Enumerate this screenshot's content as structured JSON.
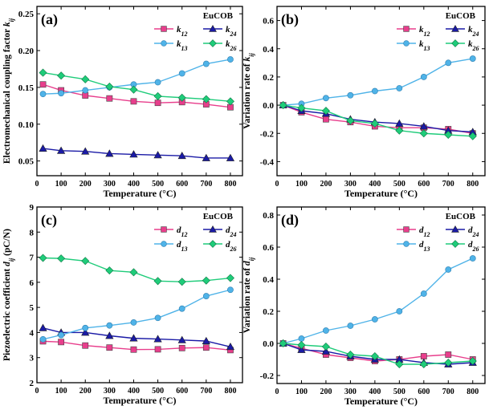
{
  "figure": {
    "colors": {
      "k12": "#e83e8c",
      "k24": "#1a1aa6",
      "k13": "#4fb3e8",
      "k26": "#1fcc7a"
    }
  },
  "chart_data": [
    {
      "type": "line",
      "panel_label": "(a)",
      "material": "EuCOB",
      "xlabel": "Temperature (°C)",
      "ylabel_parts": [
        "Electromechanical coupling factor ",
        "k",
        "ij"
      ],
      "xlim": [
        0,
        850
      ],
      "ylim": [
        0.03,
        0.26
      ],
      "xticks": [
        0,
        100,
        200,
        300,
        400,
        500,
        600,
        700,
        800
      ],
      "yticks": [
        0.05,
        0.1,
        0.15,
        0.2,
        0.25
      ],
      "ytick_labels": [
        "0.05",
        "0.10",
        "0.15",
        "0.20",
        "0.25"
      ],
      "x": [
        25,
        100,
        200,
        300,
        400,
        500,
        600,
        700,
        800
      ],
      "series": [
        {
          "key": "k12",
          "name": "k",
          "sub": "12",
          "marker": "square",
          "values": [
            0.154,
            0.146,
            0.139,
            0.135,
            0.131,
            0.129,
            0.13,
            0.127,
            0.123
          ]
        },
        {
          "key": "k24",
          "name": "k",
          "sub": "24",
          "marker": "triangle",
          "values": [
            0.067,
            0.064,
            0.063,
            0.06,
            0.059,
            0.058,
            0.057,
            0.054,
            0.054
          ]
        },
        {
          "key": "k13",
          "name": "k",
          "sub": "13",
          "marker": "circle",
          "values": [
            0.141,
            0.142,
            0.146,
            0.15,
            0.154,
            0.157,
            0.169,
            0.182,
            0.188
          ]
        },
        {
          "key": "k26",
          "name": "k",
          "sub": "26",
          "marker": "diamond",
          "values": [
            0.17,
            0.166,
            0.161,
            0.151,
            0.147,
            0.138,
            0.136,
            0.134,
            0.131
          ]
        }
      ]
    },
    {
      "type": "line",
      "panel_label": "(b)",
      "material": "EuCOB",
      "xlabel": "Temperature (°C)",
      "ylabel_parts": [
        "Variation rate of ",
        "k",
        "ij"
      ],
      "xlim": [
        0,
        850
      ],
      "ylim": [
        -0.5,
        0.7
      ],
      "xticks": [
        0,
        100,
        200,
        300,
        400,
        500,
        600,
        700,
        800
      ],
      "yticks": [
        -0.4,
        -0.2,
        0.0,
        0.2,
        0.4,
        0.6
      ],
      "ytick_labels": [
        "-0.4",
        "-0.2",
        "0.0",
        "0.2",
        "0.4",
        "0.6"
      ],
      "x": [
        25,
        100,
        200,
        300,
        400,
        500,
        600,
        700,
        800
      ],
      "series": [
        {
          "key": "k12",
          "name": "k",
          "sub": "12",
          "marker": "square",
          "values": [
            0.0,
            -0.05,
            -0.1,
            -0.12,
            -0.15,
            -0.16,
            -0.16,
            -0.17,
            -0.2
          ]
        },
        {
          "key": "k24",
          "name": "k",
          "sub": "24",
          "marker": "triangle",
          "values": [
            0.0,
            -0.04,
            -0.06,
            -0.1,
            -0.12,
            -0.13,
            -0.15,
            -0.18,
            -0.19
          ]
        },
        {
          "key": "k13",
          "name": "k",
          "sub": "13",
          "marker": "circle",
          "values": [
            0.0,
            0.01,
            0.05,
            0.07,
            0.1,
            0.12,
            0.2,
            0.3,
            0.33
          ]
        },
        {
          "key": "k26",
          "name": "k",
          "sub": "26",
          "marker": "diamond",
          "values": [
            0.0,
            -0.02,
            -0.04,
            -0.11,
            -0.13,
            -0.18,
            -0.2,
            -0.21,
            -0.22
          ]
        }
      ]
    },
    {
      "type": "line",
      "panel_label": "(c)",
      "material": "EuCOB",
      "xlabel": "Temperature (°C)",
      "ylabel_parts": [
        "Piezoelectric coefficient ",
        "d",
        "ij",
        " (pC/N)"
      ],
      "xlim": [
        0,
        850
      ],
      "ylim": [
        2,
        9
      ],
      "xticks": [
        0,
        100,
        200,
        300,
        400,
        500,
        600,
        700,
        800
      ],
      "yticks": [
        2,
        3,
        4,
        5,
        6,
        7,
        8,
        9
      ],
      "ytick_labels": [
        "2",
        "3",
        "4",
        "5",
        "6",
        "7",
        "8",
        "9"
      ],
      "x": [
        25,
        100,
        200,
        300,
        400,
        500,
        600,
        700,
        800
      ],
      "series": [
        {
          "key": "k12",
          "name": "d",
          "sub": "12",
          "marker": "square",
          "values": [
            3.65,
            3.62,
            3.48,
            3.4,
            3.32,
            3.33,
            3.38,
            3.4,
            3.3
          ]
        },
        {
          "key": "k24",
          "name": "d",
          "sub": "24",
          "marker": "triangle",
          "values": [
            4.18,
            4.0,
            4.0,
            3.87,
            3.77,
            3.74,
            3.7,
            3.66,
            3.43
          ]
        },
        {
          "key": "k13",
          "name": "d",
          "sub": "13",
          "marker": "circle",
          "values": [
            3.73,
            3.9,
            4.18,
            4.28,
            4.4,
            4.58,
            4.95,
            5.45,
            5.7
          ]
        },
        {
          "key": "k26",
          "name": "d",
          "sub": "26",
          "marker": "diamond",
          "values": [
            6.97,
            6.95,
            6.85,
            6.47,
            6.4,
            6.05,
            6.02,
            6.07,
            6.17
          ]
        }
      ]
    },
    {
      "type": "line",
      "panel_label": "(d)",
      "material": "EuCOB",
      "xlabel": "Temperature (°C)",
      "ylabel_parts": [
        "Variation rate of ",
        "d",
        "ij"
      ],
      "xlim": [
        0,
        850
      ],
      "ylim": [
        -0.25,
        0.85
      ],
      "xticks": [
        0,
        100,
        200,
        300,
        400,
        500,
        600,
        700,
        800
      ],
      "yticks": [
        -0.2,
        0.0,
        0.2,
        0.4,
        0.6,
        0.8
      ],
      "ytick_labels": [
        "-0.2",
        "0.0",
        "0.2",
        "0.4",
        "0.6",
        "0.8"
      ],
      "x": [
        25,
        100,
        200,
        300,
        400,
        500,
        600,
        700,
        800
      ],
      "series": [
        {
          "key": "k12",
          "name": "d",
          "sub": "12",
          "marker": "square",
          "values": [
            0.0,
            -0.03,
            -0.07,
            -0.09,
            -0.11,
            -0.1,
            -0.08,
            -0.07,
            -0.1
          ]
        },
        {
          "key": "k24",
          "name": "d",
          "sub": "24",
          "marker": "triangle",
          "values": [
            0.0,
            -0.04,
            -0.05,
            -0.08,
            -0.1,
            -0.1,
            -0.12,
            -0.13,
            -0.12
          ]
        },
        {
          "key": "k13",
          "name": "d",
          "sub": "13",
          "marker": "circle",
          "values": [
            0.0,
            0.03,
            0.08,
            0.11,
            0.15,
            0.2,
            0.31,
            0.46,
            0.53
          ]
        },
        {
          "key": "k26",
          "name": "d",
          "sub": "26",
          "marker": "diamond",
          "values": [
            0.0,
            -0.01,
            -0.02,
            -0.07,
            -0.08,
            -0.13,
            -0.13,
            -0.12,
            -0.11
          ]
        }
      ]
    }
  ]
}
